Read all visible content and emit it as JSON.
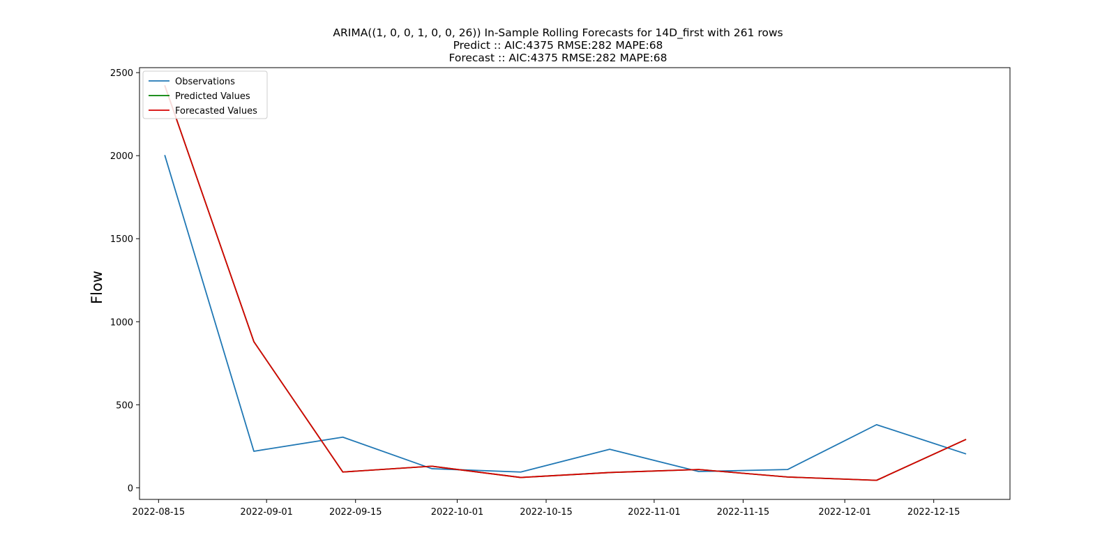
{
  "chart_data": {
    "type": "line",
    "title_lines": [
      "ARIMA((1, 0, 0, 1, 0, 0, 26)) In-Sample Rolling Forecasts for 14D_first with 261 rows",
      "Predict :: AIC:4375 RMSE:282 MAPE:68",
      "Forecast :: AIC:4375 RMSE:282 MAPE:68"
    ],
    "xlabel": "",
    "ylabel": "Flow",
    "ylim": [
      -70,
      2530
    ],
    "xlim": [
      "2022-08-12",
      "2022-12-27"
    ],
    "x_ticks": [
      "2022-08-15",
      "2022-09-01",
      "2022-09-15",
      "2022-10-01",
      "2022-10-15",
      "2022-11-01",
      "2022-11-15",
      "2022-12-01",
      "2022-12-15"
    ],
    "y_ticks": [
      0,
      500,
      1000,
      1500,
      2000,
      2500
    ],
    "grid": false,
    "legend_position": "top-left",
    "series": [
      {
        "name": "Observations",
        "color": "#1f77b4",
        "x": [
          "2022-08-16",
          "2022-08-30",
          "2022-09-13",
          "2022-09-27",
          "2022-10-11",
          "2022-10-25",
          "2022-11-08",
          "2022-11-22",
          "2022-12-06",
          "2022-12-20"
        ],
        "values": [
          2000,
          220,
          305,
          115,
          95,
          232,
          98,
          110,
          380,
          205
        ]
      },
      {
        "name": "Predicted Values",
        "color": "#008000",
        "x": [
          "2022-08-16",
          "2022-08-30",
          "2022-09-13",
          "2022-09-27",
          "2022-10-11",
          "2022-10-25",
          "2022-11-08",
          "2022-11-22",
          "2022-12-06",
          "2022-12-20"
        ],
        "values": [
          2420,
          880,
          95,
          130,
          62,
          92,
          110,
          65,
          45,
          290
        ]
      },
      {
        "name": "Forecasted Values",
        "color": "#d60000",
        "x": [
          "2022-08-16",
          "2022-08-30",
          "2022-09-13",
          "2022-09-27",
          "2022-10-11",
          "2022-10-25",
          "2022-11-08",
          "2022-11-22",
          "2022-12-06",
          "2022-12-20"
        ],
        "values": [
          2420,
          880,
          95,
          130,
          62,
          92,
          110,
          65,
          45,
          290
        ]
      }
    ]
  }
}
